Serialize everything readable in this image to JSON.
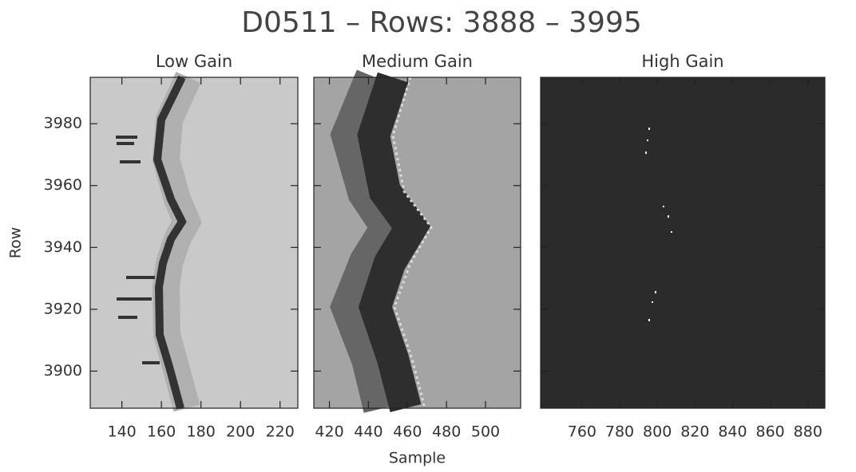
{
  "title": "D0511 – Rows: 3888 – 3995",
  "chart_data": [
    {
      "type": "heatmap",
      "title": "Low Gain",
      "ylabel": "Row",
      "xlim": [
        124,
        229
      ],
      "xticks": [
        140,
        160,
        180,
        200,
        220
      ],
      "ylim": [
        3888,
        3995
      ],
      "yticks": [
        3900,
        3920,
        3940,
        3960,
        3980
      ]
    },
    {
      "type": "heatmap",
      "title": "Medium Gain",
      "xlabel": "Sample",
      "xlim": [
        412,
        518
      ],
      "xticks": [
        420,
        440,
        460,
        480,
        500
      ],
      "ylim": [
        3888,
        3995
      ],
      "yticks": [
        3900,
        3920,
        3940,
        3960,
        3980
      ]
    },
    {
      "type": "heatmap",
      "title": "High Gain",
      "xlim": [
        738,
        889
      ],
      "xticks": [
        760,
        780,
        800,
        820,
        840,
        860,
        880
      ],
      "ylim": [
        3888,
        3995
      ],
      "yticks": [
        3900,
        3920,
        3940,
        3960,
        3980
      ]
    }
  ]
}
